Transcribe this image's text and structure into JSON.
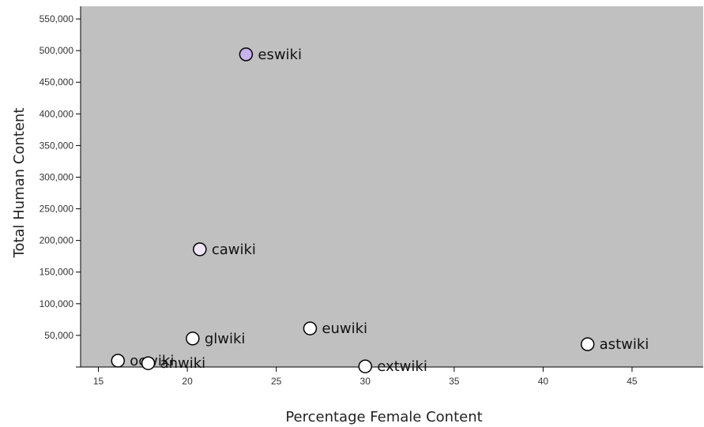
{
  "chart_data": {
    "type": "scatter",
    "xlabel": "Percentage Female Content",
    "ylabel": "Total Human Content",
    "xlim": [
      14,
      49
    ],
    "ylim": [
      0,
      570000
    ],
    "x_ticks": [
      15,
      20,
      25,
      30,
      35,
      40,
      45
    ],
    "y_ticks": [
      50000,
      100000,
      150000,
      200000,
      250000,
      300000,
      350000,
      400000,
      450000,
      500000,
      550000
    ],
    "y_tick_labels": [
      "50,000",
      "100,000",
      "150,000",
      "200,000",
      "250,000",
      "300,000",
      "350,000",
      "400,000",
      "450,000",
      "500,000",
      "550,000"
    ],
    "grid": false,
    "background_color": "#c0c0c0",
    "points": [
      {
        "label": "eswiki",
        "x": 23.3,
        "y": 494000,
        "color": "#c8b4ec"
      },
      {
        "label": "cawiki",
        "x": 20.7,
        "y": 186000,
        "color": "#efe6f7"
      },
      {
        "label": "euwiki",
        "x": 26.9,
        "y": 61000,
        "color": "#ffffff"
      },
      {
        "label": "glwiki",
        "x": 20.3,
        "y": 45000,
        "color": "#ffffff"
      },
      {
        "label": "astwiki",
        "x": 42.5,
        "y": 36000,
        "color": "#ffffff"
      },
      {
        "label": "ocwiki",
        "x": 16.1,
        "y": 10000,
        "color": "#ffffff"
      },
      {
        "label": "anwiki",
        "x": 17.8,
        "y": 6000,
        "color": "#ffffff"
      },
      {
        "label": "extwiki",
        "x": 30.0,
        "y": 1000,
        "color": "#ffffff"
      }
    ]
  }
}
